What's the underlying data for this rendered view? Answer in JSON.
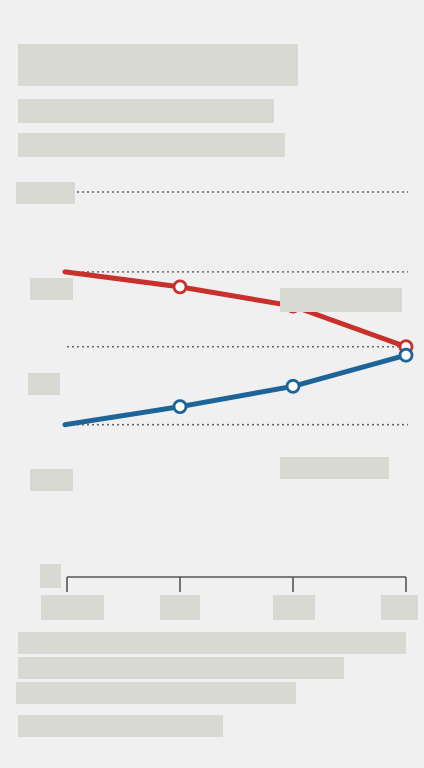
{
  "header": {
    "title": "",
    "subtitle_line1": "",
    "subtitle_line2": ""
  },
  "labels": {
    "y_top": "",
    "y_upper": "",
    "y_mid": "",
    "y_low": "",
    "series_red": "",
    "series_blue": "",
    "x_unit": ""
  },
  "footer": {
    "note_line1": "",
    "note_line2": "",
    "note_line3": "",
    "source": ""
  },
  "chart_data": {
    "type": "line",
    "x": [
      0,
      1,
      2,
      3
    ],
    "tick_labels": [
      "",
      "",
      "",
      ""
    ],
    "ylim": [
      0,
      1
    ],
    "grid": true,
    "legend": "inline-right",
    "series": [
      {
        "color": "#c8302b",
        "values": [
          0.792,
          0.753,
          0.703,
          0.597
        ]
      },
      {
        "color": "#1d6599",
        "values": [
          0.394,
          0.441,
          0.494,
          0.575
        ]
      }
    ],
    "reference_lines": [
      1.0,
      0.792,
      0.597,
      0.394
    ],
    "reference_line_color": "#666666"
  }
}
